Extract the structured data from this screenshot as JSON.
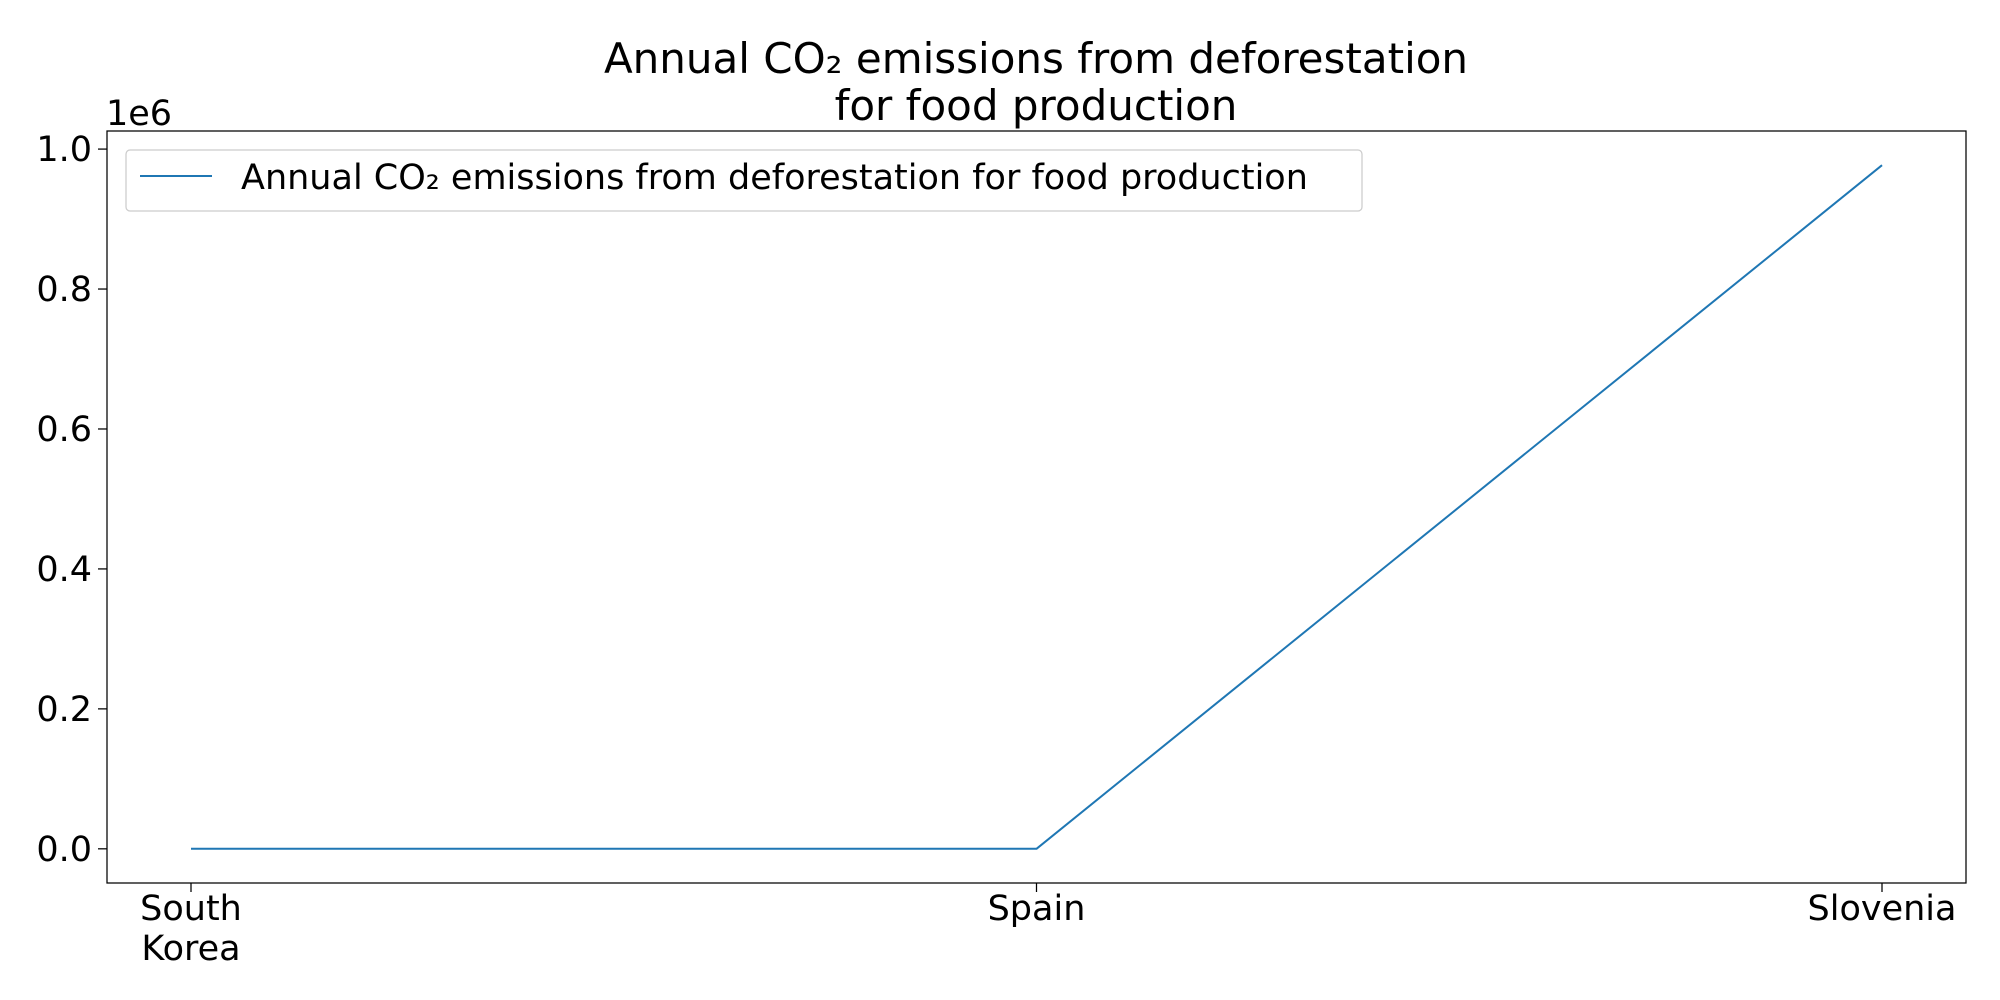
{
  "chart_data": {
    "type": "line",
    "title_lines": [
      "Annual CO₂ emissions from deforestation",
      "for food production"
    ],
    "categories": [
      [
        "South",
        "Korea"
      ],
      [
        "Spain"
      ],
      [
        "Slovenia"
      ]
    ],
    "series": [
      {
        "name": "Annual CO₂ emissions from deforestation for food production",
        "values": [
          0,
          0,
          977000
        ],
        "color": "#1f77b4"
      }
    ],
    "ylim": [
      -48850,
      1025850
    ],
    "yticks": [
      0,
      200000,
      400000,
      600000,
      800000,
      1000000
    ],
    "ytick_labels": [
      "0.0",
      "0.2",
      "0.4",
      "0.6",
      "0.8",
      "1.0"
    ],
    "y_offset_label": "1e6",
    "xlabel": "",
    "ylabel": "",
    "grid": false,
    "legend_position": "upper-left"
  }
}
